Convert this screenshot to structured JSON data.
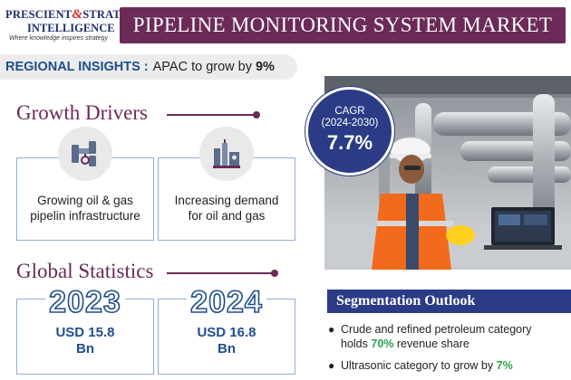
{
  "logo": {
    "line1_a": "PRESCIENT",
    "amp": "&",
    "line1_b": "STRATEGIC",
    "line2": "INTELLIGENCE",
    "tagline": "Where knowledge inspires strategy"
  },
  "title": "PIPELINE MONITORING SYSTEM MARKET",
  "regional": {
    "label": "REGIONAL INSIGHTS :",
    "text": "APAC to grow by",
    "value": "9%"
  },
  "growth_drivers": {
    "heading": "Growth Drivers",
    "items": [
      {
        "icon": "pipeline-icon",
        "line1": "Growing oil & gas",
        "line2": "pipelin infrastructure"
      },
      {
        "icon": "refinery-icon",
        "line1": "Increasing demand",
        "line2": "for oil and gas"
      }
    ]
  },
  "cagr": {
    "label": "CAGR",
    "period": "(2024-2030)",
    "value": "7.7%"
  },
  "global_statistics": {
    "heading": "Global Statistics",
    "items": [
      {
        "year": "2023",
        "value_line1": "USD 15.8",
        "value_line2": "Bn"
      },
      {
        "year": "2024",
        "value_line1": "USD 16.8",
        "value_line2": "Bn"
      }
    ]
  },
  "segmentation": {
    "heading": "Segmentation Outlook",
    "items": [
      {
        "pre": "Crude and refined petroleum category",
        "pre2": "holds",
        "highlight": "70%",
        "post": "revenue share"
      },
      {
        "pre": "Ultrasonic category to grow by",
        "highlight": "7%"
      }
    ]
  },
  "colors": {
    "brand_purple": "#6b2a57",
    "brand_blue": "#2b3b86",
    "accent_blue": "#1e4e8c",
    "highlight_green": "#2aa34a",
    "card_border": "#8fb0d3"
  }
}
